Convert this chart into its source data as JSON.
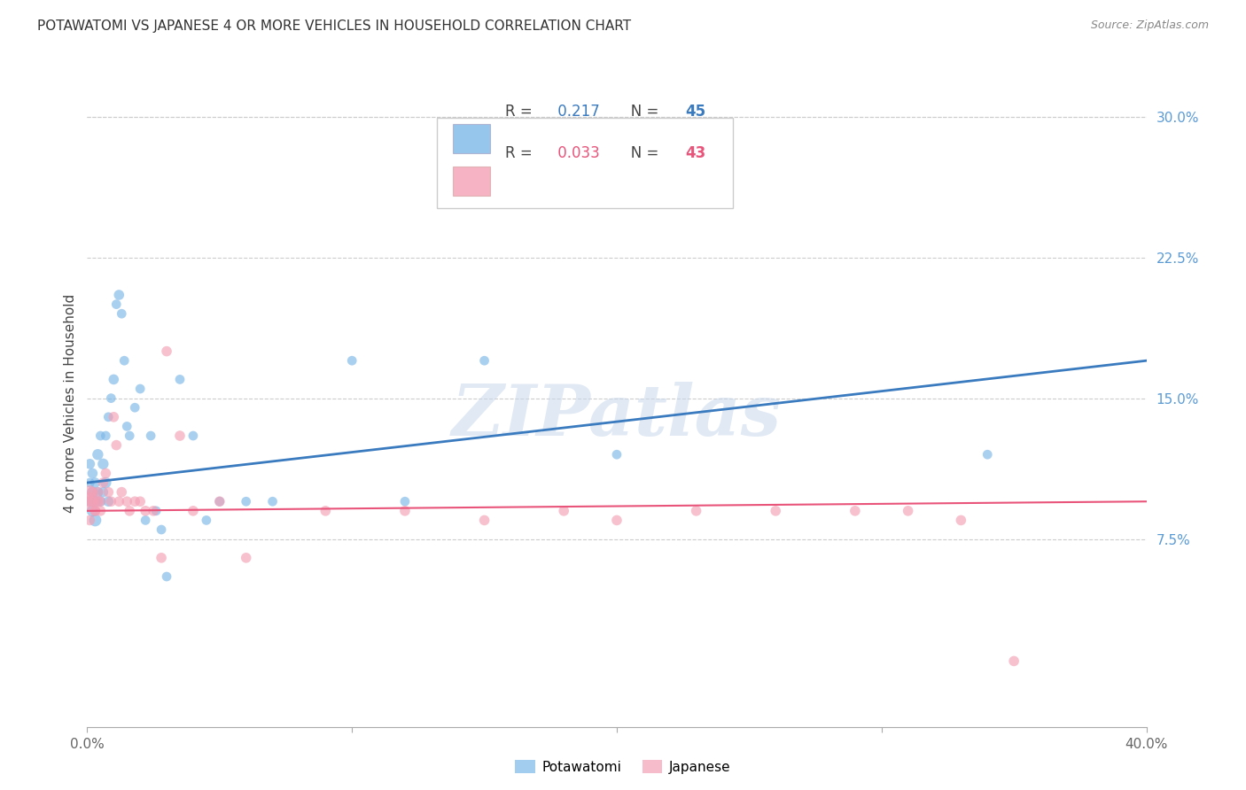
{
  "title": "POTAWATOMI VS JAPANESE 4 OR MORE VEHICLES IN HOUSEHOLD CORRELATION CHART",
  "source": "Source: ZipAtlas.com",
  "ylabel": "4 or more Vehicles in Household",
  "xlim": [
    0.0,
    0.4
  ],
  "ylim": [
    -0.025,
    0.32
  ],
  "yticks_right": [
    0.075,
    0.15,
    0.225,
    0.3
  ],
  "ytick_right_labels": [
    "7.5%",
    "15.0%",
    "22.5%",
    "30.0%"
  ],
  "blue_color": "#7db8e8",
  "pink_color": "#f4a0b5",
  "blue_line_color": "#3a7abf",
  "pink_line_color": "#e8547a",
  "blue_R": "0.217",
  "blue_N": "45",
  "pink_R": "0.033",
  "pink_N": "43",
  "watermark": "ZIPatlas",
  "pot_x": [
    0.001,
    0.001,
    0.001,
    0.002,
    0.002,
    0.002,
    0.003,
    0.003,
    0.003,
    0.004,
    0.004,
    0.005,
    0.005,
    0.006,
    0.006,
    0.007,
    0.007,
    0.008,
    0.008,
    0.009,
    0.01,
    0.011,
    0.012,
    0.013,
    0.014,
    0.015,
    0.016,
    0.018,
    0.02,
    0.022,
    0.024,
    0.026,
    0.028,
    0.03,
    0.035,
    0.04,
    0.045,
    0.05,
    0.06,
    0.07,
    0.1,
    0.12,
    0.15,
    0.2,
    0.34
  ],
  "pot_y": [
    0.095,
    0.105,
    0.115,
    0.1,
    0.11,
    0.09,
    0.105,
    0.095,
    0.085,
    0.1,
    0.12,
    0.095,
    0.13,
    0.1,
    0.115,
    0.13,
    0.105,
    0.14,
    0.095,
    0.15,
    0.16,
    0.2,
    0.205,
    0.195,
    0.17,
    0.135,
    0.13,
    0.145,
    0.155,
    0.085,
    0.13,
    0.09,
    0.08,
    0.055,
    0.16,
    0.13,
    0.085,
    0.095,
    0.095,
    0.095,
    0.17,
    0.095,
    0.17,
    0.12,
    0.12
  ],
  "pot_s": [
    60,
    60,
    70,
    80,
    70,
    90,
    70,
    80,
    100,
    70,
    80,
    70,
    60,
    70,
    80,
    60,
    80,
    60,
    70,
    60,
    70,
    60,
    70,
    60,
    60,
    60,
    60,
    60,
    60,
    60,
    60,
    60,
    60,
    60,
    60,
    60,
    60,
    60,
    60,
    60,
    60,
    60,
    60,
    60,
    60
  ],
  "jap_x": [
    0.001,
    0.001,
    0.001,
    0.001,
    0.002,
    0.002,
    0.003,
    0.003,
    0.004,
    0.004,
    0.005,
    0.005,
    0.006,
    0.007,
    0.008,
    0.009,
    0.01,
    0.011,
    0.012,
    0.013,
    0.015,
    0.016,
    0.018,
    0.02,
    0.022,
    0.025,
    0.028,
    0.03,
    0.035,
    0.04,
    0.05,
    0.06,
    0.09,
    0.12,
    0.15,
    0.18,
    0.2,
    0.23,
    0.26,
    0.29,
    0.31,
    0.33,
    0.35
  ],
  "jap_y": [
    0.095,
    0.1,
    0.095,
    0.085,
    0.1,
    0.095,
    0.09,
    0.09,
    0.095,
    0.1,
    0.09,
    0.095,
    0.105,
    0.11,
    0.1,
    0.095,
    0.14,
    0.125,
    0.095,
    0.1,
    0.095,
    0.09,
    0.095,
    0.095,
    0.09,
    0.09,
    0.065,
    0.175,
    0.13,
    0.09,
    0.095,
    0.065,
    0.09,
    0.09,
    0.085,
    0.09,
    0.085,
    0.09,
    0.09,
    0.09,
    0.09,
    0.085,
    0.01
  ],
  "jap_s": [
    220,
    120,
    80,
    70,
    70,
    70,
    70,
    70,
    70,
    70,
    70,
    70,
    70,
    70,
    70,
    70,
    70,
    70,
    70,
    70,
    70,
    70,
    70,
    70,
    70,
    70,
    70,
    70,
    70,
    70,
    70,
    70,
    70,
    70,
    70,
    70,
    70,
    70,
    70,
    70,
    70,
    70,
    70
  ],
  "blue_line_x0": 0.0,
  "blue_line_y0": 0.105,
  "blue_line_x1": 0.4,
  "blue_line_y1": 0.17,
  "pink_line_x0": 0.0,
  "pink_line_y0": 0.09,
  "pink_line_x1": 0.4,
  "pink_line_y1": 0.095
}
